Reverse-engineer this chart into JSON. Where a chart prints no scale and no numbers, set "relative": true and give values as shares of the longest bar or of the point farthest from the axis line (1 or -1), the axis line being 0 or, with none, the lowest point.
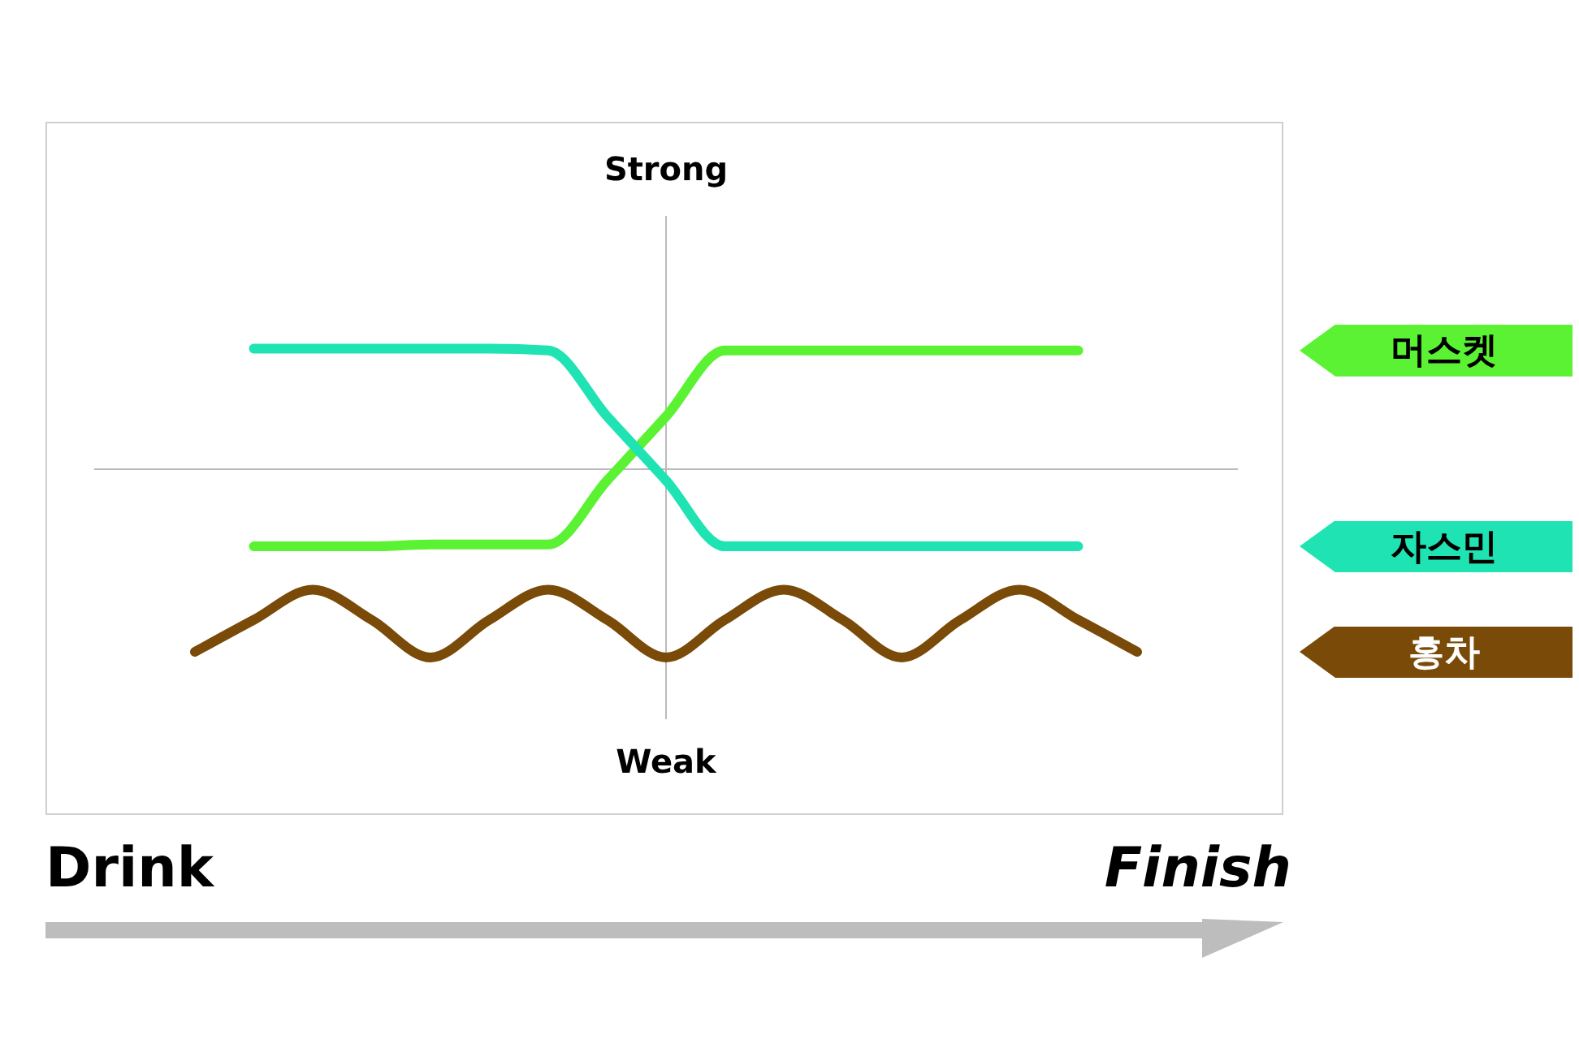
{
  "chart_data": {
    "type": "line",
    "relative": true,
    "legend": "right",
    "categories": [
      null,
      null,
      null,
      null,
      null,
      null,
      null,
      null,
      null,
      null,
      null,
      null,
      null,
      null,
      null,
      null,
      null
    ],
    "series": [
      {
        "name": "머스켓",
        "color": "#5af232",
        "values": [
          null,
          -0.41,
          -0.41,
          -0.41,
          -0.4,
          -0.4,
          -0.4,
          -0.06,
          0.28,
          0.63,
          0.63,
          0.63,
          0.63,
          0.63,
          0.63,
          0.63,
          null
        ]
      },
      {
        "name": "자스민",
        "color": "#1fe3b3",
        "values": [
          null,
          0.64,
          0.64,
          0.64,
          0.64,
          0.64,
          0.63,
          0.28,
          -0.06,
          -0.41,
          -0.41,
          -0.41,
          -0.41,
          -0.41,
          -0.41,
          -0.41,
          null
        ]
      },
      {
        "name": "홍차",
        "color": "#7a4a08",
        "values": [
          -0.97,
          -0.8,
          -0.64,
          -0.8,
          -1,
          -0.8,
          -0.64,
          -0.8,
          -1,
          -0.8,
          -0.64,
          -0.8,
          -1,
          -0.8,
          -0.64,
          -0.8,
          -0.97
        ]
      }
    ],
    "annotations": [
      "Strong",
      "Weak",
      "Drink",
      "Finish"
    ]
  }
}
